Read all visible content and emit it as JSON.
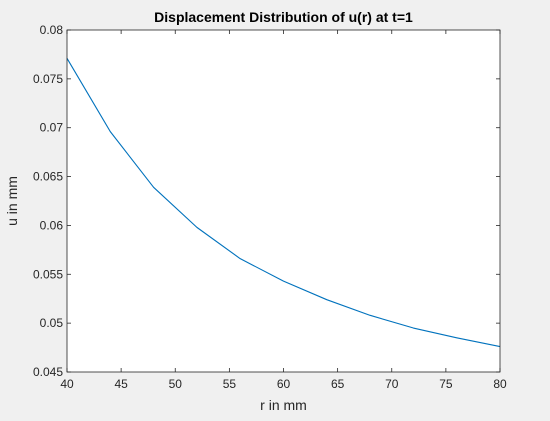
{
  "chart_data": {
    "type": "line",
    "title": "Displacement Distribution of u(r) at t=1",
    "xlabel": "r in mm",
    "ylabel": "u in mm",
    "xlim": [
      40,
      80
    ],
    "ylim": [
      0.045,
      0.08
    ],
    "xticks": [
      40,
      45,
      50,
      55,
      60,
      65,
      70,
      75,
      80
    ],
    "yticks": [
      0.045,
      0.05,
      0.055,
      0.06,
      0.065,
      0.07,
      0.075,
      0.08
    ],
    "xtick_labels": [
      "40",
      "45",
      "50",
      "55",
      "60",
      "65",
      "70",
      "75",
      "80"
    ],
    "ytick_labels": [
      "0.045",
      "0.05",
      "0.055",
      "0.06",
      "0.065",
      "0.07",
      "0.075",
      "0.08"
    ],
    "grid": false,
    "box": true,
    "series": [
      {
        "color": "#0072bd",
        "x": [
          40,
          44,
          48,
          52,
          56,
          60,
          64,
          68,
          72,
          76,
          80
        ],
        "y": [
          0.0771,
          0.0696,
          0.0639,
          0.0598,
          0.0566,
          0.0543,
          0.0524,
          0.0508,
          0.0495,
          0.0485,
          0.0476
        ]
      }
    ]
  }
}
